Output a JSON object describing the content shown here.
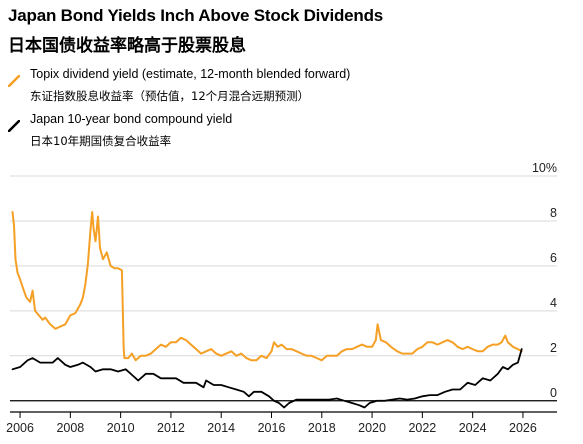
{
  "chart_data": {
    "type": "line",
    "title": "Japan Bond Yields Inch Above Stock Dividends",
    "subtitle": "日本国债收益率略高于股票股息",
    "y_unit_label": "10%",
    "ylim": [
      -0.5,
      10
    ],
    "yticks": [
      0,
      2,
      4,
      6,
      8
    ],
    "xlim": [
      2005.6,
      2026.4
    ],
    "xticks": [
      2006,
      2008,
      2010,
      2012,
      2014,
      2016,
      2018,
      2020,
      2022,
      2024,
      2026
    ],
    "grid": true,
    "legend_position": "top-left",
    "series": [
      {
        "name": "Topix dividend yield (estimate, 12-month blended forward)",
        "name_cn": "东证指数股息收益率（预估值，12个月混合远期预测）",
        "color": "#F5A025",
        "points": [
          [
            2005.7,
            8.4
          ],
          [
            2005.76,
            7.8
          ],
          [
            2005.82,
            6.3
          ],
          [
            2005.9,
            5.7
          ],
          [
            2006.0,
            5.4
          ],
          [
            2006.12,
            5.0
          ],
          [
            2006.25,
            4.6
          ],
          [
            2006.4,
            4.4
          ],
          [
            2006.5,
            4.9
          ],
          [
            2006.6,
            4.0
          ],
          [
            2006.75,
            3.8
          ],
          [
            2006.9,
            3.6
          ],
          [
            2007.0,
            3.7
          ],
          [
            2007.2,
            3.4
          ],
          [
            2007.4,
            3.2
          ],
          [
            2007.6,
            3.3
          ],
          [
            2007.8,
            3.4
          ],
          [
            2008.0,
            3.8
          ],
          [
            2008.2,
            3.9
          ],
          [
            2008.4,
            4.3
          ],
          [
            2008.5,
            4.6
          ],
          [
            2008.6,
            5.2
          ],
          [
            2008.7,
            6.1
          ],
          [
            2008.8,
            7.6
          ],
          [
            2008.87,
            8.4
          ],
          [
            2008.93,
            7.6
          ],
          [
            2009.0,
            7.1
          ],
          [
            2009.1,
            8.2
          ],
          [
            2009.18,
            6.8
          ],
          [
            2009.3,
            6.3
          ],
          [
            2009.45,
            6.6
          ],
          [
            2009.6,
            6.0
          ],
          [
            2009.75,
            5.9
          ],
          [
            2009.9,
            5.9
          ],
          [
            2010.05,
            5.8
          ],
          [
            2010.12,
            2.3
          ],
          [
            2010.15,
            1.9
          ],
          [
            2010.3,
            1.9
          ],
          [
            2010.45,
            2.1
          ],
          [
            2010.6,
            1.8
          ],
          [
            2010.8,
            2.0
          ],
          [
            2011.0,
            2.0
          ],
          [
            2011.2,
            2.1
          ],
          [
            2011.4,
            2.3
          ],
          [
            2011.6,
            2.5
          ],
          [
            2011.8,
            2.4
          ],
          [
            2012.0,
            2.6
          ],
          [
            2012.2,
            2.6
          ],
          [
            2012.4,
            2.8
          ],
          [
            2012.6,
            2.7
          ],
          [
            2012.8,
            2.5
          ],
          [
            2013.0,
            2.3
          ],
          [
            2013.2,
            2.1
          ],
          [
            2013.4,
            2.2
          ],
          [
            2013.6,
            2.3
          ],
          [
            2013.8,
            2.1
          ],
          [
            2014.0,
            2.0
          ],
          [
            2014.2,
            2.1
          ],
          [
            2014.4,
            2.2
          ],
          [
            2014.6,
            2.0
          ],
          [
            2014.8,
            2.1
          ],
          [
            2015.0,
            1.9
          ],
          [
            2015.2,
            1.8
          ],
          [
            2015.4,
            1.8
          ],
          [
            2015.6,
            2.0
          ],
          [
            2015.8,
            1.9
          ],
          [
            2016.0,
            2.2
          ],
          [
            2016.1,
            2.6
          ],
          [
            2016.25,
            2.4
          ],
          [
            2016.4,
            2.5
          ],
          [
            2016.6,
            2.3
          ],
          [
            2016.8,
            2.3
          ],
          [
            2017.0,
            2.2
          ],
          [
            2017.2,
            2.1
          ],
          [
            2017.4,
            2.0
          ],
          [
            2017.6,
            2.0
          ],
          [
            2017.8,
            1.9
          ],
          [
            2018.0,
            1.8
          ],
          [
            2018.2,
            2.0
          ],
          [
            2018.4,
            2.0
          ],
          [
            2018.6,
            2.0
          ],
          [
            2018.8,
            2.2
          ],
          [
            2019.0,
            2.3
          ],
          [
            2019.2,
            2.3
          ],
          [
            2019.4,
            2.4
          ],
          [
            2019.6,
            2.5
          ],
          [
            2019.8,
            2.4
          ],
          [
            2020.0,
            2.4
          ],
          [
            2020.15,
            2.7
          ],
          [
            2020.22,
            3.4
          ],
          [
            2020.35,
            2.7
          ],
          [
            2020.55,
            2.6
          ],
          [
            2020.75,
            2.4
          ],
          [
            2021.0,
            2.2
          ],
          [
            2021.2,
            2.1
          ],
          [
            2021.4,
            2.1
          ],
          [
            2021.6,
            2.1
          ],
          [
            2021.8,
            2.3
          ],
          [
            2022.0,
            2.4
          ],
          [
            2022.2,
            2.6
          ],
          [
            2022.4,
            2.6
          ],
          [
            2022.6,
            2.5
          ],
          [
            2022.8,
            2.6
          ],
          [
            2023.0,
            2.7
          ],
          [
            2023.2,
            2.6
          ],
          [
            2023.4,
            2.4
          ],
          [
            2023.6,
            2.3
          ],
          [
            2023.8,
            2.4
          ],
          [
            2024.0,
            2.3
          ],
          [
            2024.2,
            2.2
          ],
          [
            2024.4,
            2.2
          ],
          [
            2024.6,
            2.4
          ],
          [
            2024.8,
            2.5
          ],
          [
            2025.0,
            2.5
          ],
          [
            2025.15,
            2.6
          ],
          [
            2025.3,
            2.9
          ],
          [
            2025.4,
            2.6
          ],
          [
            2025.6,
            2.4
          ],
          [
            2025.8,
            2.3
          ],
          [
            2025.95,
            2.2
          ]
        ]
      },
      {
        "name": "Japan 10-year bond compound yield",
        "name_cn": "日本10年期国债复合收益率",
        "color": "#000000",
        "points": [
          [
            2005.7,
            1.4
          ],
          [
            2006.0,
            1.5
          ],
          [
            2006.3,
            1.8
          ],
          [
            2006.5,
            1.9
          ],
          [
            2006.8,
            1.7
          ],
          [
            2007.0,
            1.7
          ],
          [
            2007.3,
            1.7
          ],
          [
            2007.5,
            1.9
          ],
          [
            2007.8,
            1.6
          ],
          [
            2008.0,
            1.5
          ],
          [
            2008.3,
            1.6
          ],
          [
            2008.5,
            1.7
          ],
          [
            2008.8,
            1.5
          ],
          [
            2009.0,
            1.3
          ],
          [
            2009.3,
            1.4
          ],
          [
            2009.6,
            1.4
          ],
          [
            2009.9,
            1.3
          ],
          [
            2010.2,
            1.4
          ],
          [
            2010.5,
            1.1
          ],
          [
            2010.7,
            0.9
          ],
          [
            2011.0,
            1.2
          ],
          [
            2011.3,
            1.2
          ],
          [
            2011.6,
            1.0
          ],
          [
            2011.9,
            1.0
          ],
          [
            2012.2,
            1.0
          ],
          [
            2012.5,
            0.8
          ],
          [
            2012.8,
            0.8
          ],
          [
            2013.0,
            0.8
          ],
          [
            2013.3,
            0.6
          ],
          [
            2013.4,
            0.9
          ],
          [
            2013.7,
            0.7
          ],
          [
            2014.0,
            0.7
          ],
          [
            2014.3,
            0.6
          ],
          [
            2014.6,
            0.5
          ],
          [
            2014.9,
            0.4
          ],
          [
            2015.1,
            0.2
          ],
          [
            2015.3,
            0.4
          ],
          [
            2015.6,
            0.4
          ],
          [
            2015.9,
            0.2
          ],
          [
            2016.1,
            0.0
          ],
          [
            2016.3,
            -0.1
          ],
          [
            2016.5,
            -0.3
          ],
          [
            2016.7,
            -0.1
          ],
          [
            2017.0,
            0.05
          ],
          [
            2017.3,
            0.05
          ],
          [
            2017.6,
            0.05
          ],
          [
            2018.0,
            0.05
          ],
          [
            2018.3,
            0.05
          ],
          [
            2018.6,
            0.1
          ],
          [
            2018.9,
            0.0
          ],
          [
            2019.2,
            -0.1
          ],
          [
            2019.5,
            -0.2
          ],
          [
            2019.7,
            -0.3
          ],
          [
            2019.9,
            -0.1
          ],
          [
            2020.2,
            0.0
          ],
          [
            2020.5,
            0.0
          ],
          [
            2020.8,
            0.05
          ],
          [
            2021.1,
            0.1
          ],
          [
            2021.4,
            0.05
          ],
          [
            2021.7,
            0.1
          ],
          [
            2022.0,
            0.2
          ],
          [
            2022.3,
            0.25
          ],
          [
            2022.6,
            0.25
          ],
          [
            2022.9,
            0.4
          ],
          [
            2023.2,
            0.5
          ],
          [
            2023.5,
            0.5
          ],
          [
            2023.8,
            0.8
          ],
          [
            2024.1,
            0.7
          ],
          [
            2024.4,
            1.0
          ],
          [
            2024.7,
            0.9
          ],
          [
            2025.0,
            1.2
          ],
          [
            2025.2,
            1.5
          ],
          [
            2025.4,
            1.4
          ],
          [
            2025.6,
            1.6
          ],
          [
            2025.8,
            1.7
          ],
          [
            2025.95,
            2.3
          ]
        ]
      }
    ]
  }
}
